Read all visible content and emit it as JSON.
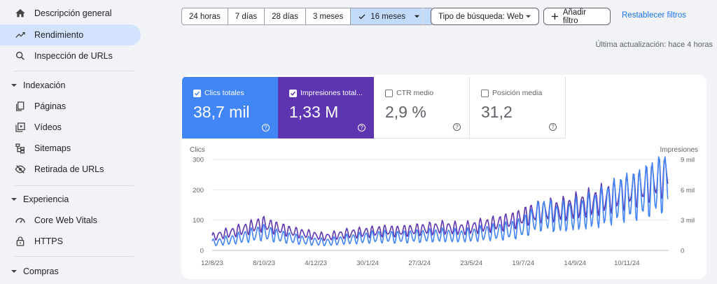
{
  "sidebar": {
    "items": [
      {
        "label": "Descripción general",
        "icon": "home-icon"
      },
      {
        "label": "Rendimiento",
        "icon": "trending-up-icon",
        "active": true
      },
      {
        "label": "Inspección de URLs",
        "icon": "search-icon"
      }
    ],
    "sections": [
      {
        "title": "Indexación",
        "items": [
          {
            "label": "Páginas",
            "icon": "pages-icon"
          },
          {
            "label": "Vídeos",
            "icon": "video-icon"
          },
          {
            "label": "Sitemaps",
            "icon": "sitemap-icon"
          },
          {
            "label": "Retirada de URLs",
            "icon": "eye-off-icon"
          }
        ]
      },
      {
        "title": "Experiencia",
        "items": [
          {
            "label": "Core Web Vitals",
            "icon": "gauge-icon"
          },
          {
            "label": "HTTPS",
            "icon": "lock-icon"
          }
        ]
      },
      {
        "title": "Compras",
        "items": []
      }
    ]
  },
  "toolbar": {
    "ranges": [
      "24 horas",
      "7 días",
      "28 días",
      "3 meses",
      "16 meses"
    ],
    "selected_range": "16 meses",
    "search_type": "Tipo de búsqueda: Web",
    "add_filter": "Añadir filtro",
    "reset_filters": "Restablecer filtros"
  },
  "last_updated": "Última actualización: hace 4 horas",
  "metrics": {
    "clicks": {
      "label": "Clics totales",
      "value": "38,7 mil",
      "checked": true
    },
    "impressions": {
      "label": "Impresiones total...",
      "value": "1,33 M",
      "checked": true
    },
    "ctr": {
      "label": "CTR medio",
      "value": "2,9 %",
      "checked": false
    },
    "position": {
      "label": "Posición media",
      "value": "31,2",
      "checked": false
    }
  },
  "colors": {
    "clicks": "#4285f4",
    "impressions": "#5e35b1",
    "active_nav": "#d3e3fd"
  },
  "chart_data": {
    "type": "line",
    "ylabel_left": "Clics",
    "ylabel_right": "Impresiones",
    "ylim_left": [
      0,
      300
    ],
    "ylim_right": [
      0,
      9000
    ],
    "yticks_left": [
      "0",
      "100",
      "200",
      "300"
    ],
    "yticks_right": [
      "0",
      "3 mil",
      "6 mil",
      "9 mil"
    ],
    "x_tick_labels": [
      "12/8/23",
      "8/10/23",
      "4/12/23",
      "30/1/24",
      "27/3/24",
      "23/5/24",
      "19/7/24",
      "14/9/24",
      "10/11/24"
    ],
    "x_range": [
      "12/8/23",
      "26/12/24"
    ],
    "grid": true,
    "series": [
      {
        "name": "Clics totales",
        "axis": "left",
        "weekly_x": [
          "12/8/23",
          "19/8/23",
          "26/8/23",
          "2/9/23",
          "9/9/23",
          "16/9/23",
          "23/9/23",
          "30/9/23",
          "7/10/23",
          "14/10/23",
          "21/10/23",
          "28/10/23",
          "4/11/23",
          "11/11/23",
          "18/11/23",
          "25/11/23",
          "2/12/23",
          "9/12/23",
          "16/12/23",
          "23/12/23",
          "30/12/23",
          "6/1/24",
          "13/1/24",
          "20/1/24",
          "27/1/24",
          "3/2/24",
          "10/2/24",
          "17/2/24",
          "24/2/24",
          "2/3/24",
          "9/3/24",
          "16/3/24",
          "23/3/24",
          "30/3/24",
          "6/4/24",
          "13/4/24",
          "20/4/24",
          "27/4/24",
          "4/5/24",
          "11/5/24",
          "18/5/24",
          "25/5/24",
          "1/6/24",
          "8/6/24",
          "15/6/24",
          "22/6/24",
          "29/6/24",
          "6/7/24",
          "13/7/24",
          "20/7/24",
          "27/7/24",
          "3/8/24",
          "10/8/24",
          "17/8/24",
          "24/8/24",
          "31/8/24",
          "7/9/24",
          "14/9/24",
          "21/9/24",
          "28/9/24",
          "5/10/24",
          "12/10/24",
          "19/10/24",
          "26/10/24",
          "2/11/24",
          "9/11/24",
          "16/11/24",
          "23/11/24",
          "30/11/24",
          "7/12/24",
          "14/12/24",
          "21/12/24",
          "26/12/24"
        ],
        "weekly_avg": [
          25,
          28,
          32,
          35,
          40,
          45,
          50,
          55,
          60,
          55,
          50,
          45,
          42,
          38,
          35,
          32,
          30,
          28,
          27,
          30,
          33,
          36,
          38,
          40,
          42,
          44,
          45,
          46,
          45,
          44,
          45,
          46,
          47,
          48,
          49,
          50,
          50,
          50,
          49,
          48,
          50,
          52,
          55,
          58,
          60,
          62,
          65,
          68,
          72,
          80,
          95,
          110,
          118,
          115,
          108,
          110,
          115,
          118,
          122,
          128,
          135,
          140,
          150,
          160,
          170,
          175,
          180,
          185,
          195,
          205,
          215,
          225,
          240
        ]
      },
      {
        "name": "Impresiones totales",
        "axis": "right",
        "weekly_x": [
          "12/8/23",
          "19/8/23",
          "26/8/23",
          "2/9/23",
          "9/9/23",
          "16/9/23",
          "23/9/23",
          "30/9/23",
          "7/10/23",
          "14/10/23",
          "21/10/23",
          "28/10/23",
          "4/11/23",
          "11/11/23",
          "18/11/23",
          "25/11/23",
          "2/12/23",
          "9/12/23",
          "16/12/23",
          "23/12/23",
          "30/12/23",
          "6/1/24",
          "13/1/24",
          "20/1/24",
          "27/1/24",
          "3/2/24",
          "10/2/24",
          "17/2/24",
          "24/2/24",
          "2/3/24",
          "9/3/24",
          "16/3/24",
          "23/3/24",
          "30/3/24",
          "6/4/24",
          "13/4/24",
          "20/4/24",
          "27/4/24",
          "4/5/24",
          "11/5/24",
          "18/5/24",
          "25/5/24",
          "1/6/24",
          "8/6/24",
          "15/6/24",
          "22/6/24",
          "29/6/24",
          "6/7/24",
          "13/7/24",
          "20/7/24",
          "27/7/24",
          "3/8/24",
          "10/8/24",
          "17/8/24",
          "24/8/24",
          "31/8/24",
          "7/9/24",
          "14/9/24",
          "21/9/24",
          "28/9/24",
          "5/10/24",
          "12/10/24",
          "19/10/24",
          "26/10/24",
          "2/11/24",
          "9/11/24",
          "16/11/24",
          "23/11/24",
          "30/11/24",
          "7/12/24",
          "14/12/24",
          "21/12/24",
          "26/12/24"
        ],
        "weekly_avg": [
          1300,
          1500,
          1650,
          1800,
          1950,
          2100,
          2300,
          2500,
          2650,
          2450,
          2250,
          2100,
          1950,
          1800,
          1700,
          1600,
          1500,
          1400,
          1350,
          1450,
          1550,
          1650,
          1700,
          1750,
          1800,
          1850,
          1900,
          1950,
          1950,
          1900,
          1950,
          2000,
          2050,
          2100,
          2150,
          2200,
          2250,
          2250,
          2200,
          2150,
          2200,
          2300,
          2400,
          2500,
          2600,
          2700,
          2800,
          2950,
          3100,
          3350,
          3600,
          3800,
          3900,
          4000,
          3950,
          4050,
          4200,
          4350,
          4500,
          4650,
          4800,
          5000,
          5200,
          5400,
          5600,
          5800,
          6000,
          6200,
          6500,
          6800,
          7100,
          7400,
          7700
        ]
      }
    ]
  }
}
